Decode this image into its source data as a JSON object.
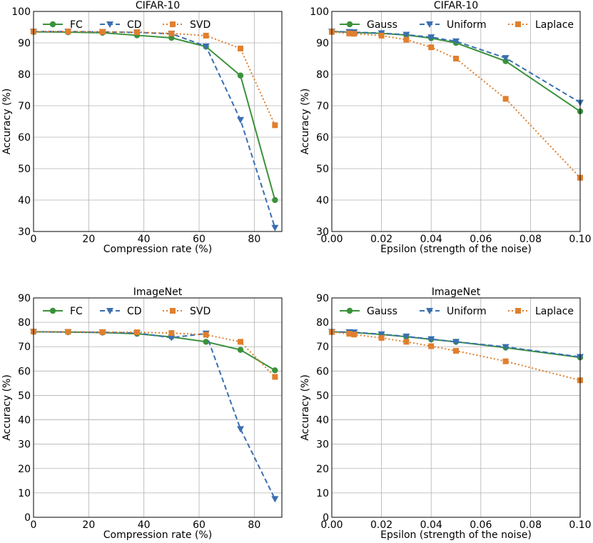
{
  "colors": {
    "green": "#3a923a",
    "blue": "#3a6fb0",
    "orange": "#e07f2e"
  },
  "chart_data": [
    {
      "type": "line",
      "title": "CIFAR-10",
      "xlabel": "Compression rate (%)",
      "ylabel": "Accuracy (%)",
      "xlim": [
        0,
        90
      ],
      "ylim": [
        30,
        100
      ],
      "xticks": [
        0,
        20,
        40,
        60,
        80
      ],
      "yticks": [
        30,
        40,
        50,
        60,
        70,
        80,
        90,
        100
      ],
      "xtick_labels": [
        "0",
        "20",
        "40",
        "60",
        "80"
      ],
      "ytick_labels": [
        "30",
        "40",
        "50",
        "60",
        "70",
        "80",
        "90",
        "100"
      ],
      "legend": "top-left, single row",
      "series": [
        {
          "name": "FC",
          "style": "solid",
          "marker": "circle",
          "color": "green",
          "x": [
            0,
            12.5,
            25,
            37.5,
            50,
            62.5,
            75,
            87.5
          ],
          "y": [
            93.5,
            93.4,
            93.2,
            92.4,
            91.6,
            88.8,
            79.6,
            40.0
          ]
        },
        {
          "name": "CD",
          "style": "dashed",
          "marker": "triangle-down",
          "color": "blue",
          "x": [
            0,
            12.5,
            25,
            37.5,
            50,
            62.5,
            75,
            87.5
          ],
          "y": [
            93.6,
            93.6,
            93.5,
            93.3,
            92.9,
            88.9,
            65.5,
            31.2
          ]
        },
        {
          "name": "SVD",
          "style": "dotted",
          "marker": "square",
          "color": "orange",
          "x": [
            0,
            12.5,
            25,
            37.5,
            50,
            62.5,
            75,
            87.5
          ],
          "y": [
            93.6,
            93.6,
            93.5,
            93.4,
            93.0,
            92.3,
            88.2,
            63.8
          ]
        }
      ]
    },
    {
      "type": "line",
      "title": "CIFAR-10",
      "xlabel": "Epsilon (strength of the noise)",
      "ylabel": "Accuracy (%)",
      "xlim": [
        0,
        0.1
      ],
      "ylim": [
        30,
        100
      ],
      "xticks": [
        0,
        0.02,
        0.04,
        0.06,
        0.08,
        0.1
      ],
      "yticks": [
        30,
        40,
        50,
        60,
        70,
        80,
        90,
        100
      ],
      "xtick_labels": [
        "0.00",
        "0.02",
        "0.04",
        "0.06",
        "0.08",
        "0.10"
      ],
      "ytick_labels": [
        "30",
        "40",
        "50",
        "60",
        "70",
        "80",
        "90",
        "100"
      ],
      "legend": "top, single row",
      "series": [
        {
          "name": "Gauss",
          "style": "solid",
          "marker": "circle",
          "color": "green",
          "x": [
            0,
            0.007,
            0.009,
            0.02,
            0.03,
            0.04,
            0.05,
            0.07,
            0.1
          ],
          "y": [
            93.6,
            93.4,
            93.3,
            93.0,
            92.5,
            91.5,
            90.0,
            84.2,
            68.2
          ]
        },
        {
          "name": "Uniform",
          "style": "dashed",
          "marker": "triangle-down",
          "color": "blue",
          "x": [
            0,
            0.007,
            0.009,
            0.02,
            0.03,
            0.04,
            0.05,
            0.07,
            0.1
          ],
          "y": [
            93.6,
            93.5,
            93.4,
            93.1,
            92.6,
            91.8,
            90.5,
            85.2,
            71.0
          ]
        },
        {
          "name": "Laplace",
          "style": "dotted",
          "marker": "square",
          "color": "orange",
          "x": [
            0,
            0.007,
            0.009,
            0.02,
            0.03,
            0.04,
            0.05,
            0.07,
            0.1
          ],
          "y": [
            93.5,
            93.0,
            92.9,
            92.3,
            91.0,
            88.6,
            85.0,
            72.2,
            47.1
          ]
        }
      ]
    },
    {
      "type": "line",
      "title": "ImageNet",
      "xlabel": "Compression rate (%)",
      "ylabel": "Accuracy (%)",
      "xlim": [
        0,
        90
      ],
      "ylim": [
        0,
        90
      ],
      "xticks": [
        0,
        20,
        40,
        60,
        80
      ],
      "yticks": [
        0,
        10,
        20,
        30,
        40,
        50,
        60,
        70,
        80,
        90
      ],
      "xtick_labels": [
        "0",
        "20",
        "40",
        "60",
        "80"
      ],
      "ytick_labels": [
        "0",
        "10",
        "20",
        "30",
        "40",
        "50",
        "60",
        "70",
        "80",
        "90"
      ],
      "legend": "top-left, single row",
      "series": [
        {
          "name": "FC",
          "style": "solid",
          "marker": "circle",
          "color": "green",
          "x": [
            0,
            12.5,
            25,
            37.5,
            50,
            62.5,
            75,
            87.5
          ],
          "y": [
            76.1,
            76.0,
            75.8,
            75.3,
            74.0,
            72.0,
            68.7,
            60.3
          ]
        },
        {
          "name": "CD",
          "style": "dashed",
          "marker": "triangle-down",
          "color": "blue",
          "x": [
            0,
            12.5,
            25,
            37.5,
            50,
            62.5,
            75,
            87.5
          ],
          "y": [
            76.1,
            76.0,
            75.9,
            75.6,
            73.7,
            75.4,
            36.2,
            7.5
          ]
        },
        {
          "name": "SVD",
          "style": "dotted",
          "marker": "square",
          "color": "orange",
          "x": [
            0,
            12.5,
            25,
            37.5,
            50,
            62.5,
            75,
            87.5
          ],
          "y": [
            76.2,
            76.1,
            76.0,
            75.9,
            75.6,
            74.9,
            72.0,
            57.6
          ]
        }
      ]
    },
    {
      "type": "line",
      "title": "ImageNet",
      "xlabel": "Epsilon (strength of the noise)",
      "ylabel": "Accuracy (%)",
      "xlim": [
        0,
        0.1
      ],
      "ylim": [
        0,
        90
      ],
      "xticks": [
        0,
        0.02,
        0.04,
        0.06,
        0.08,
        0.1
      ],
      "yticks": [
        0,
        10,
        20,
        30,
        40,
        50,
        60,
        70,
        80,
        90
      ],
      "xtick_labels": [
        "0.00",
        "0.02",
        "0.04",
        "0.06",
        "0.08",
        "0.10"
      ],
      "ytick_labels": [
        "0",
        "10",
        "20",
        "30",
        "40",
        "50",
        "60",
        "70",
        "80",
        "90"
      ],
      "legend": "top, single row",
      "series": [
        {
          "name": "Gauss",
          "style": "solid",
          "marker": "circle",
          "color": "green",
          "x": [
            0,
            0.007,
            0.009,
            0.02,
            0.03,
            0.04,
            0.05,
            0.07,
            0.1
          ],
          "y": [
            76.1,
            75.9,
            75.8,
            75.0,
            74.1,
            73.0,
            72.0,
            69.6,
            65.6
          ]
        },
        {
          "name": "Uniform",
          "style": "dashed",
          "marker": "triangle-down",
          "color": "blue",
          "x": [
            0,
            0.007,
            0.009,
            0.02,
            0.03,
            0.04,
            0.05,
            0.07,
            0.1
          ],
          "y": [
            76.1,
            76.0,
            75.9,
            75.1,
            74.2,
            73.1,
            72.0,
            69.9,
            65.8
          ]
        },
        {
          "name": "Laplace",
          "style": "dotted",
          "marker": "square",
          "color": "orange",
          "x": [
            0,
            0.007,
            0.009,
            0.02,
            0.03,
            0.04,
            0.05,
            0.07,
            0.1
          ],
          "y": [
            76.0,
            75.3,
            75.0,
            73.6,
            72.0,
            70.2,
            68.3,
            64.0,
            56.2
          ]
        }
      ]
    }
  ]
}
